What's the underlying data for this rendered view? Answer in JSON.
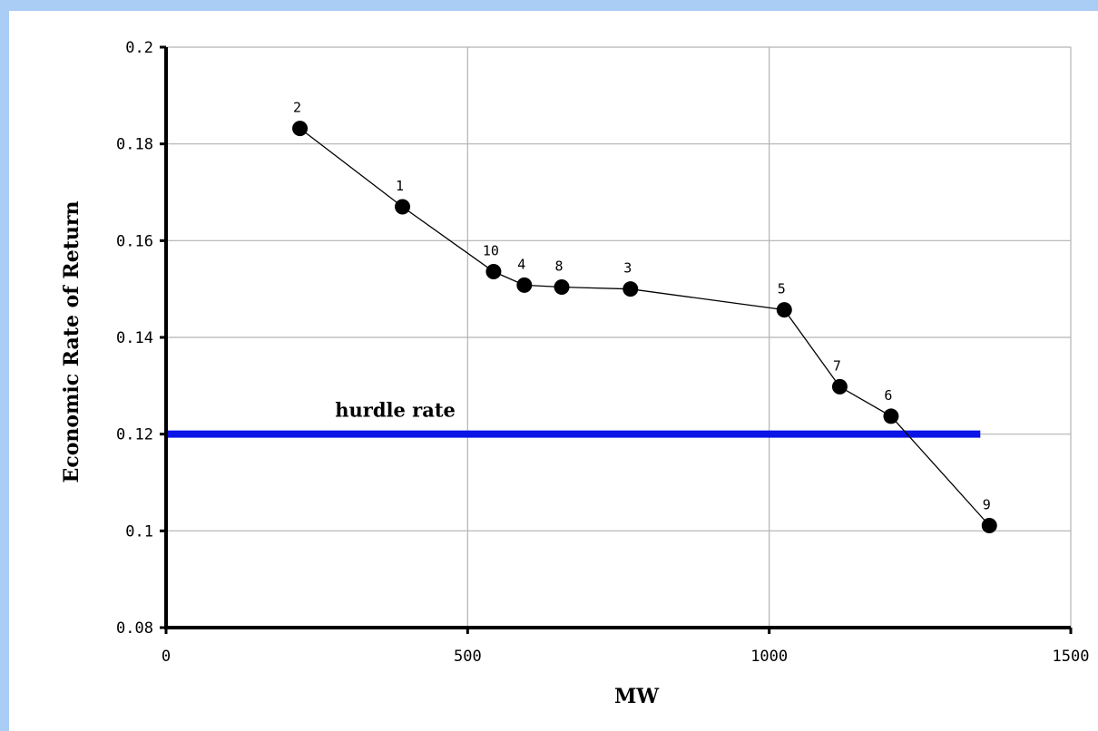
{
  "chart_data": {
    "type": "scatter",
    "xlabel": "MW",
    "ylabel": "Economic Rate of Return",
    "xlim": [
      0,
      1500
    ],
    "ylim": [
      0.08,
      0.2
    ],
    "x_ticks": [
      "0",
      "500",
      "1000",
      "1500"
    ],
    "y_ticks": [
      "0.2",
      "0.18",
      "0.16",
      "0.14",
      "0.12",
      "0.1",
      "0.08"
    ],
    "grid": true,
    "series": [
      {
        "points": [
          {
            "label": "2",
            "x": 222,
            "y": 0.1832
          },
          {
            "label": "1",
            "x": 392,
            "y": 0.167
          },
          {
            "label": "10",
            "x": 543,
            "y": 0.1536
          },
          {
            "label": "4",
            "x": 594,
            "y": 0.1508
          },
          {
            "label": "8",
            "x": 656,
            "y": 0.1504
          },
          {
            "label": "3",
            "x": 770,
            "y": 0.15
          },
          {
            "label": "5",
            "x": 1025,
            "y": 0.1457
          },
          {
            "label": "7",
            "x": 1117,
            "y": 0.1298
          },
          {
            "label": "6",
            "x": 1202,
            "y": 0.1237
          },
          {
            "label": "9",
            "x": 1365,
            "y": 0.1011
          }
        ]
      }
    ],
    "reference_line": {
      "label": "hurdle rate",
      "y": 0.12,
      "x_start": 0,
      "x_end": 1350,
      "color": "#0a14e6"
    },
    "colors": {
      "background": "#a9cdf5",
      "plot": "#ffffff",
      "grid": "#b3b3b3",
      "marker": "#000000"
    }
  }
}
